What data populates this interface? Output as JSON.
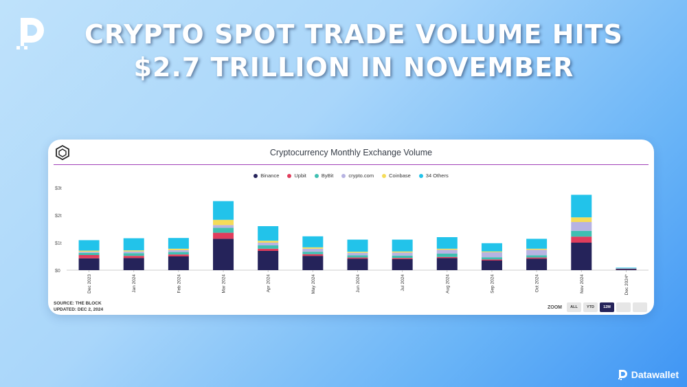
{
  "headline": {
    "line1": "CRYPTO SPOT TRADE VOLUME HITS",
    "line2": "$2.7 TRILLION IN NOVEMBER"
  },
  "brand": {
    "name": "Datawallet",
    "icon": "datawallet-logo-icon"
  },
  "source": {
    "line1": "SOURCE: THE BLOCK",
    "line2": "UPDATED: DEC 2, 2024"
  },
  "zoom": {
    "label": "ZOOM",
    "buttons": [
      "ALL",
      "YTD",
      "12M",
      "",
      ""
    ],
    "active": "12M"
  },
  "colors": {
    "Binance": "#25235a",
    "Upbit": "#e03d5c",
    "ByBit": "#3fbfb1",
    "crypto.com": "#b7b3e2",
    "Coinbase": "#f5dc58",
    "34 Others": "#22c3ea"
  },
  "chart_data": {
    "type": "bar",
    "stacked": true,
    "title": "Cryptocurrency Monthly Exchange Volume",
    "xlabel": "",
    "ylabel": "",
    "ylim": [
      0,
      3
    ],
    "y_ticks": [
      "$0",
      "$1t",
      "$2t",
      "$3t"
    ],
    "legend_position": "top-center",
    "grid": false,
    "categories": [
      "Dec 2023",
      "Jan 2024",
      "Feb 2024",
      "Mar 2024",
      "Apr 2024",
      "May 2024",
      "Jun 2024",
      "Jul 2024",
      "Aug 2024",
      "Sep 2024",
      "Oct 2024",
      "Nov 2024",
      "Dec 2024*"
    ],
    "series": [
      {
        "name": "Binance",
        "values": [
          0.43,
          0.44,
          0.5,
          1.14,
          0.7,
          0.52,
          0.42,
          0.4,
          0.44,
          0.35,
          0.42,
          1.0,
          0.04
        ]
      },
      {
        "name": "Upbit",
        "values": [
          0.12,
          0.08,
          0.07,
          0.22,
          0.08,
          0.06,
          0.04,
          0.04,
          0.04,
          0.04,
          0.04,
          0.22,
          0.01
        ]
      },
      {
        "name": "ByBit",
        "values": [
          0.08,
          0.1,
          0.09,
          0.18,
          0.12,
          0.09,
          0.08,
          0.09,
          0.12,
          0.08,
          0.08,
          0.21,
          0.01
        ]
      },
      {
        "name": "crypto.com",
        "values": [
          0.04,
          0.06,
          0.07,
          0.1,
          0.1,
          0.11,
          0.09,
          0.11,
          0.14,
          0.18,
          0.2,
          0.32,
          0.01
        ]
      },
      {
        "name": "Coinbase",
        "values": [
          0.04,
          0.04,
          0.05,
          0.19,
          0.07,
          0.05,
          0.04,
          0.04,
          0.04,
          0.03,
          0.04,
          0.17,
          0.0
        ]
      },
      {
        "name": "34 Others",
        "values": [
          0.38,
          0.44,
          0.39,
          0.68,
          0.53,
          0.4,
          0.44,
          0.43,
          0.42,
          0.3,
          0.36,
          0.82,
          0.02
        ]
      }
    ]
  }
}
